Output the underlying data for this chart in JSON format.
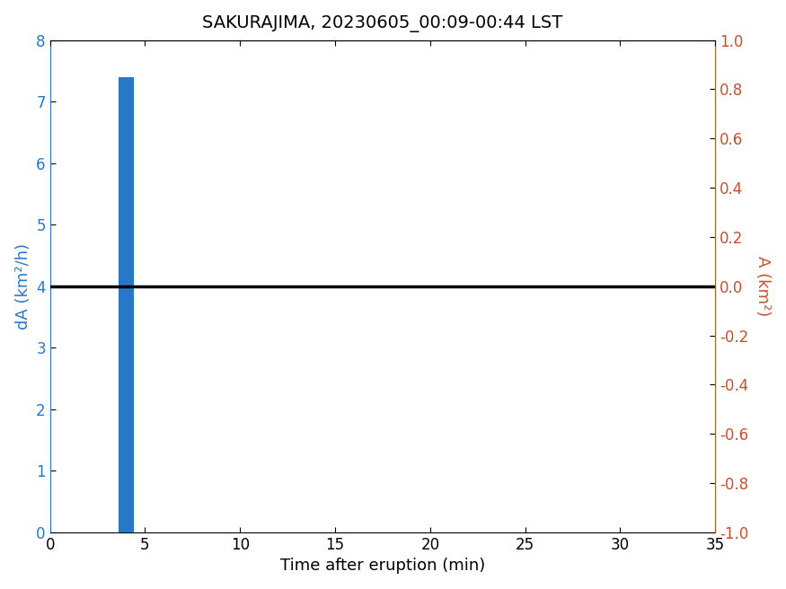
{
  "title": "SAKURAJIMA, 20230605_00:09-00:44 LST",
  "xlabel": "Time after eruption (min)",
  "ylabel_left": "dA (km²/h)",
  "ylabel_right": "A (km²)",
  "bar_x": 4.0,
  "bar_width": 0.8,
  "bar_height": 7.4,
  "bar_color": "#2878c8",
  "xlim": [
    0,
    35
  ],
  "ylim_left": [
    0,
    8
  ],
  "ylim_right": [
    -1,
    1
  ],
  "xticks": [
    0,
    5,
    10,
    15,
    20,
    25,
    30,
    35
  ],
  "yticks_left": [
    0,
    1,
    2,
    3,
    4,
    5,
    6,
    7,
    8
  ],
  "yticks_right": [
    -1.0,
    -0.8,
    -0.6,
    -0.4,
    -0.2,
    0.0,
    0.2,
    0.4,
    0.6,
    0.8,
    1.0
  ],
  "line_x": [
    0,
    35
  ],
  "line_y": [
    4,
    4
  ],
  "line_color": "black",
  "line_width": 2.5,
  "left_axis_color": "#2878c8",
  "right_axis_color": "#c85028",
  "title_fontsize": 14,
  "label_fontsize": 13,
  "tick_fontsize": 12
}
